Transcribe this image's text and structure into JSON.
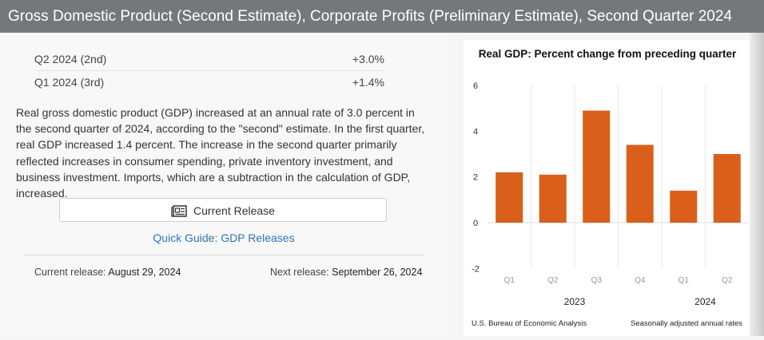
{
  "header": {
    "title": "Gross Domestic Product (Second Estimate), Corporate Profits (Preliminary Estimate), Second Quarter 2024"
  },
  "summary": [
    {
      "label": "Q2 2024 (2nd)",
      "value": "+3.0%"
    },
    {
      "label": "Q1 2024 (3rd)",
      "value": "+1.4%"
    }
  ],
  "description": "Real gross domestic product (GDP) increased at an annual rate of 3.0 percent in the second quarter of 2024, according to the \"second\" estimate. In the first quarter, real GDP increased 1.4 percent. The increase in the second quarter primarily reflected increases in consumer spending, private inventory investment, and business investment. Imports, which are a subtraction in the calculation of GDP, increased.",
  "current_release_button": "Current Release",
  "quick_guide_link": "Quick Guide: GDP Releases",
  "current_release": {
    "label": "Current release:",
    "date": "August 29, 2024"
  },
  "next_release": {
    "label": "Next release:",
    "date": "September 26, 2024"
  },
  "chart_data": {
    "type": "bar",
    "title": "Real GDP:  Percent change from preceding quarter",
    "categories": [
      "Q1",
      "Q2",
      "Q3",
      "Q4",
      "Q1",
      "Q2"
    ],
    "groups": [
      {
        "label": "2023",
        "span": 4
      },
      {
        "label": "2024",
        "span": 2
      }
    ],
    "values": [
      2.2,
      2.1,
      4.9,
      3.4,
      1.4,
      3.0
    ],
    "ylim": [
      -2,
      6
    ],
    "yticks": [
      -2,
      0,
      2,
      4,
      6
    ],
    "bar_color": "#d95f1a",
    "source": "U.S. Bureau of Economic Analysis",
    "note": "Seasonally adjusted annual rates"
  }
}
